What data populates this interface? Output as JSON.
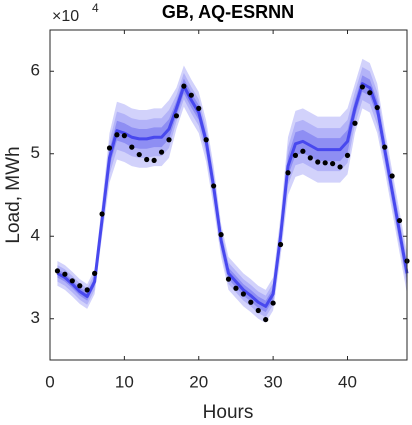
{
  "chart_data": {
    "type": "line",
    "title": "GB, AQ-ESRNN",
    "xlabel": "Hours",
    "ylabel": "Load, MWh",
    "y_multiplier": {
      "base": "×10",
      "exponent": "4"
    },
    "xlim": [
      0,
      48
    ],
    "xticks": [
      0,
      10,
      20,
      30,
      40
    ],
    "ylim": [
      2.5,
      6.5
    ],
    "yticks": [
      3,
      4,
      5,
      6
    ],
    "x": [
      1,
      2,
      3,
      4,
      5,
      6,
      7,
      8,
      9,
      10,
      11,
      12,
      13,
      14,
      15,
      16,
      17,
      18,
      19,
      20,
      21,
      22,
      23,
      24,
      25,
      26,
      27,
      28,
      29,
      30,
      31,
      32,
      33,
      34,
      35,
      36,
      37,
      38,
      39,
      40,
      41,
      42,
      43,
      44,
      45,
      46,
      47,
      48
    ],
    "bands": [
      {
        "color": "#d2d2fb",
        "lower": [
          3.4,
          3.35,
          3.27,
          3.18,
          3.12,
          3.3,
          4.0,
          4.65,
          4.93,
          4.9,
          4.85,
          4.83,
          4.83,
          4.85,
          4.85,
          4.95,
          5.3,
          5.57,
          5.4,
          5.25,
          4.9,
          4.35,
          3.75,
          3.35,
          3.25,
          3.15,
          3.08,
          3.0,
          2.95,
          3.1,
          3.75,
          4.5,
          4.72,
          4.75,
          4.7,
          4.65,
          4.65,
          4.65,
          4.65,
          4.75,
          5.25,
          5.55,
          5.5,
          5.25,
          4.8,
          4.3,
          3.8,
          3.3
        ],
        "upper": [
          3.7,
          3.65,
          3.57,
          3.48,
          3.42,
          3.6,
          4.4,
          5.25,
          5.63,
          5.6,
          5.55,
          5.53,
          5.53,
          5.55,
          5.55,
          5.65,
          5.8,
          6.07,
          5.9,
          5.75,
          5.4,
          4.85,
          4.15,
          3.75,
          3.65,
          3.55,
          3.48,
          3.4,
          3.35,
          3.5,
          4.25,
          5.2,
          5.52,
          5.55,
          5.5,
          5.45,
          5.45,
          5.45,
          5.45,
          5.55,
          5.85,
          6.15,
          6.1,
          5.85,
          5.3,
          4.8,
          4.3,
          3.8
        ]
      },
      {
        "color": "#b3b3f8",
        "lower": [
          3.45,
          3.4,
          3.32,
          3.23,
          3.17,
          3.35,
          4.07,
          4.75,
          5.05,
          5.02,
          4.97,
          4.95,
          4.95,
          4.97,
          4.97,
          5.07,
          5.39,
          5.66,
          5.49,
          5.34,
          4.99,
          4.44,
          3.82,
          3.42,
          3.32,
          3.22,
          3.15,
          3.07,
          3.02,
          3.17,
          3.84,
          4.62,
          4.86,
          4.89,
          4.84,
          4.79,
          4.79,
          4.79,
          4.79,
          4.89,
          5.35,
          5.65,
          5.6,
          5.35,
          4.89,
          4.39,
          3.89,
          3.39
        ],
        "upper": [
          3.65,
          3.6,
          3.52,
          3.43,
          3.37,
          3.55,
          4.33,
          5.15,
          5.51,
          5.48,
          5.43,
          5.41,
          5.41,
          5.43,
          5.43,
          5.53,
          5.71,
          5.98,
          5.81,
          5.66,
          5.31,
          4.76,
          4.08,
          3.68,
          3.58,
          3.48,
          3.41,
          3.33,
          3.28,
          3.43,
          4.16,
          5.08,
          5.38,
          5.41,
          5.36,
          5.31,
          5.31,
          5.31,
          5.31,
          5.41,
          5.75,
          6.05,
          6.0,
          5.75,
          5.21,
          4.71,
          4.21,
          3.71
        ]
      },
      {
        "color": "#8e8ef3",
        "lower": [
          3.5,
          3.45,
          3.37,
          3.28,
          3.22,
          3.4,
          4.13,
          4.85,
          5.16,
          5.13,
          5.08,
          5.06,
          5.06,
          5.08,
          5.08,
          5.18,
          5.46,
          5.73,
          5.56,
          5.41,
          5.06,
          4.51,
          3.88,
          3.48,
          3.38,
          3.28,
          3.21,
          3.13,
          3.08,
          3.23,
          3.91,
          4.73,
          4.98,
          5.01,
          4.96,
          4.91,
          4.91,
          4.91,
          4.91,
          5.01,
          5.45,
          5.75,
          5.7,
          5.45,
          4.96,
          4.46,
          3.96,
          3.46
        ],
        "upper": [
          3.6,
          3.55,
          3.47,
          3.38,
          3.32,
          3.5,
          4.27,
          5.05,
          5.4,
          5.37,
          5.32,
          5.3,
          5.3,
          5.32,
          5.32,
          5.42,
          5.64,
          5.91,
          5.74,
          5.59,
          5.24,
          4.69,
          4.02,
          3.62,
          3.52,
          3.42,
          3.35,
          3.27,
          3.22,
          3.37,
          4.09,
          4.97,
          5.26,
          5.29,
          5.24,
          5.19,
          5.19,
          5.19,
          5.19,
          5.29,
          5.65,
          5.95,
          5.9,
          5.65,
          5.14,
          4.64,
          4.14,
          3.64
        ]
      }
    ],
    "series": [
      {
        "type": "line",
        "color": "#4848ee",
        "values": [
          3.55,
          3.5,
          3.42,
          3.33,
          3.27,
          3.45,
          4.2,
          4.95,
          5.28,
          5.25,
          5.2,
          5.18,
          5.18,
          5.2,
          5.2,
          5.3,
          5.55,
          5.82,
          5.65,
          5.5,
          5.15,
          4.6,
          3.95,
          3.55,
          3.45,
          3.35,
          3.28,
          3.2,
          3.15,
          3.3,
          4.0,
          4.85,
          5.12,
          5.15,
          5.1,
          5.05,
          5.05,
          5.05,
          5.05,
          5.15,
          5.55,
          5.85,
          5.8,
          5.55,
          5.05,
          4.55,
          4.05,
          3.55
        ]
      },
      {
        "type": "scatter",
        "color": "#000000",
        "values": [
          3.58,
          3.54,
          3.46,
          3.4,
          3.35,
          3.55,
          4.27,
          5.07,
          5.23,
          5.22,
          5.08,
          4.99,
          4.93,
          4.92,
          5.02,
          5.17,
          5.46,
          5.82,
          5.71,
          5.55,
          5.17,
          4.61,
          4.02,
          3.48,
          3.37,
          3.3,
          3.2,
          3.1,
          2.99,
          3.19,
          3.9,
          4.77,
          4.98,
          5.03,
          4.95,
          4.9,
          4.89,
          4.88,
          4.84,
          4.98,
          5.37,
          5.81,
          5.74,
          5.56,
          5.08,
          4.73,
          4.19,
          3.7
        ]
      }
    ]
  }
}
